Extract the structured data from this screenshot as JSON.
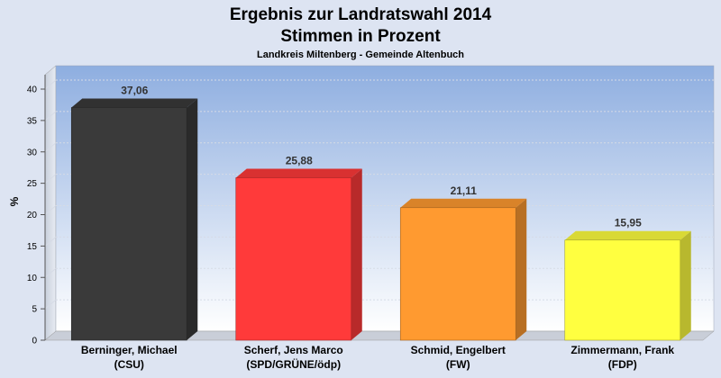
{
  "chart_data": {
    "type": "bar",
    "title_line1": "Ergebnis zur Landratswahl 2014",
    "title_line2": "Stimmen in Prozent",
    "subtitle": "Landkreis Miltenberg - Gemeinde Altenbuch",
    "ylabel": "%",
    "ylim": [
      0,
      40
    ],
    "yticks": [
      "0",
      "5",
      "10",
      "15",
      "20",
      "25",
      "30",
      "35",
      "40"
    ],
    "grid": true,
    "categories": [
      {
        "name": "Berninger, Michael",
        "party": "(CSU)"
      },
      {
        "name": "Scherf, Jens Marco",
        "party": "(SPD/GRÜNE/ödp)"
      },
      {
        "name": "Schmid, Engelbert",
        "party": "(FW)"
      },
      {
        "name": "Zimmermann, Frank",
        "party": "(FDP)"
      }
    ],
    "values": [
      37.06,
      25.88,
      21.11,
      15.95
    ],
    "value_labels": [
      "37,06",
      "25,88",
      "21,11",
      "15,95"
    ],
    "colors": [
      "#3a3a3a",
      "#ff3a3a",
      "#ff9a30",
      "#ffff40"
    ]
  }
}
